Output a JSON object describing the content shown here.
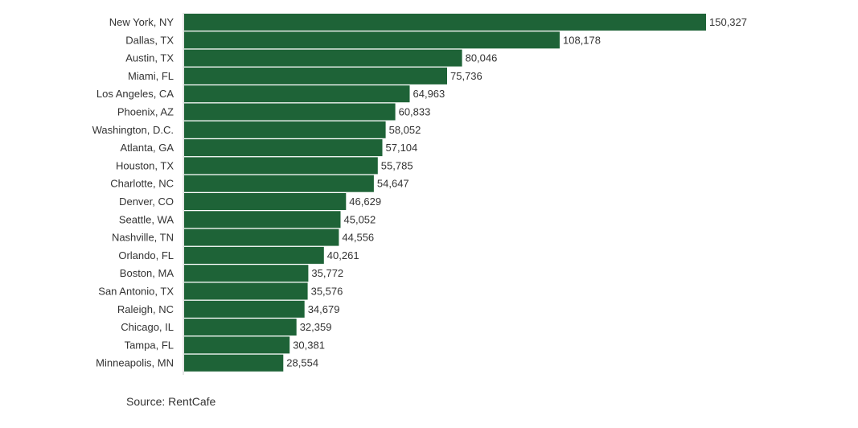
{
  "chart_data": {
    "type": "bar",
    "orientation": "horizontal",
    "categories": [
      "New York, NY",
      "Dallas, TX",
      "Austin, TX",
      "Miami, FL",
      "Los Angeles, CA",
      "Phoenix, AZ",
      "Washington, D.C.",
      "Atlanta, GA",
      "Houston, TX",
      "Charlotte, NC",
      "Denver, CO",
      "Seattle, WA",
      "Nashville, TN",
      "Orlando, FL",
      "Boston, MA",
      "San Antonio, TX",
      "Raleigh, NC",
      "Chicago, IL",
      "Tampa, FL",
      "Minneapolis, MN"
    ],
    "values": [
      150327,
      108178,
      80046,
      75736,
      64963,
      60833,
      58052,
      57104,
      55785,
      54647,
      46629,
      45052,
      44556,
      40261,
      35772,
      35576,
      34679,
      32359,
      30381,
      28554
    ],
    "value_labels": [
      "150,327",
      "108,178",
      "80,046",
      "75,736",
      "64,963",
      "60,833",
      "58,052",
      "57,104",
      "55,785",
      "54,647",
      "46,629",
      "45,052",
      "44,556",
      "40,261",
      "35,772",
      "35,576",
      "34,679",
      "32,359",
      "30,381",
      "28,554"
    ],
    "title": "",
    "xlabel": "",
    "ylabel": "",
    "grid": false,
    "legend": "none",
    "bar_color": "#1e6337"
  },
  "source": "Source: RentCafe"
}
